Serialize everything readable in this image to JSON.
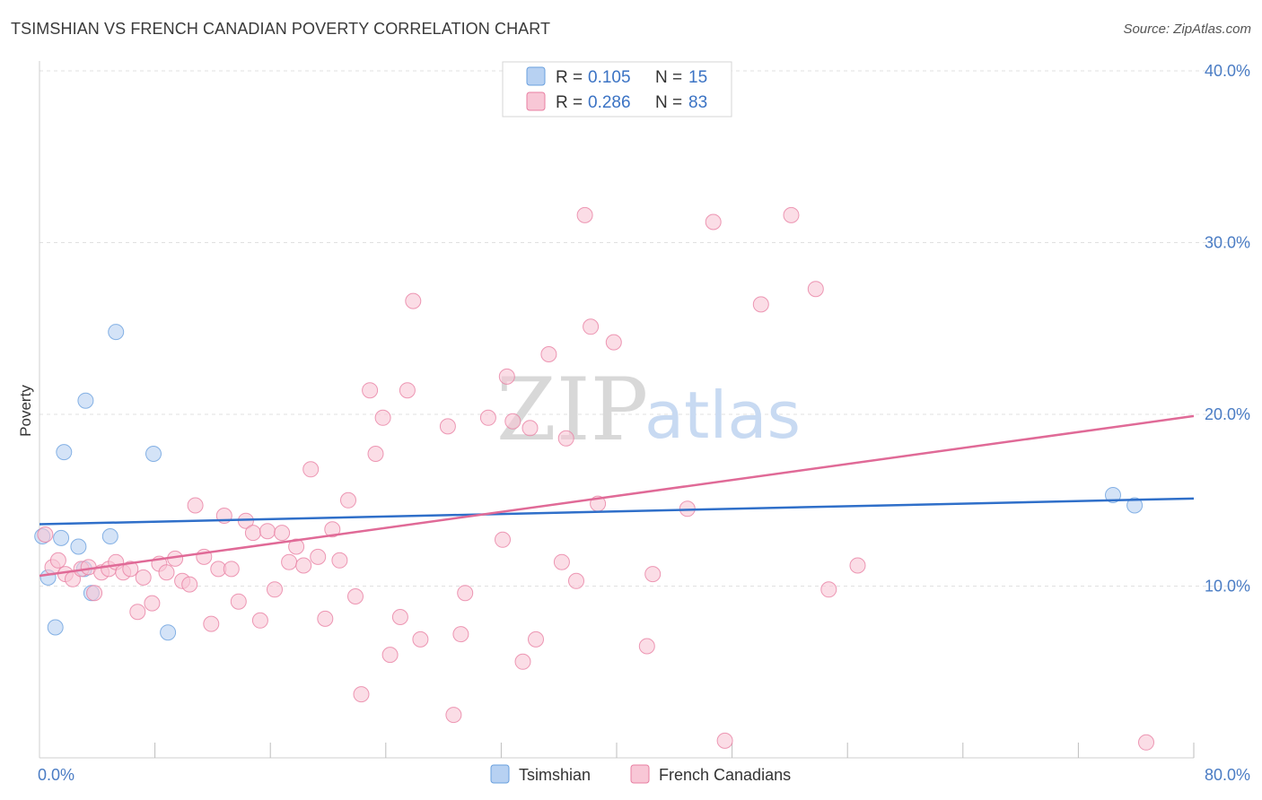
{
  "title": "TSIMSHIAN VS FRENCH CANADIAN POVERTY CORRELATION CHART",
  "source": "Source: ZipAtlas.com",
  "watermark": {
    "zip": "ZIP",
    "atlas": "atlas"
  },
  "chart_data": {
    "type": "scatter",
    "ylabel": "Poverty",
    "xlim": [
      0,
      80
    ],
    "ylim": [
      0,
      40
    ],
    "x_tick_labels": [
      {
        "value": 0,
        "label": "0.0%"
      },
      {
        "value": 80,
        "label": "80.0%"
      }
    ],
    "y_tick_labels": [
      {
        "value": 10,
        "label": "10.0%"
      },
      {
        "value": 20,
        "label": "20.0%"
      },
      {
        "value": 30,
        "label": "30.0%"
      },
      {
        "value": 40,
        "label": "40.0%"
      }
    ],
    "legend_stats": [
      {
        "r_label": "R =",
        "r": "0.105",
        "n_label": "N =",
        "n": "15"
      },
      {
        "r_label": "R =",
        "r": "0.286",
        "n_label": "N =",
        "n": "83"
      }
    ],
    "series": [
      {
        "name": "Tsimshian",
        "color": "#6aa0de",
        "fill": "#b7d1f2",
        "trend": {
          "x": [
            0,
            80
          ],
          "y": [
            13.6,
            15.1
          ]
        },
        "points": [
          [
            0.2,
            12.9
          ],
          [
            0.6,
            10.5
          ],
          [
            1.1,
            7.6
          ],
          [
            1.5,
            12.8
          ],
          [
            1.7,
            17.8
          ],
          [
            2.7,
            12.3
          ],
          [
            3.1,
            11.0
          ],
          [
            3.2,
            20.8
          ],
          [
            3.6,
            9.6
          ],
          [
            4.9,
            12.9
          ],
          [
            5.3,
            24.8
          ],
          [
            7.9,
            17.7
          ],
          [
            8.9,
            7.3
          ],
          [
            74.4,
            15.3
          ],
          [
            75.9,
            14.7
          ]
        ]
      },
      {
        "name": "French Canadians",
        "color": "#e87fa2",
        "fill": "#f8c7d6",
        "trend": {
          "x": [
            0,
            80
          ],
          "y": [
            10.6,
            19.9
          ]
        },
        "points": [
          [
            0.4,
            13.0
          ],
          [
            0.9,
            11.1
          ],
          [
            1.3,
            11.5
          ],
          [
            1.8,
            10.7
          ],
          [
            2.3,
            10.4
          ],
          [
            2.9,
            11.0
          ],
          [
            3.4,
            11.1
          ],
          [
            3.8,
            9.6
          ],
          [
            4.3,
            10.8
          ],
          [
            4.8,
            11.0
          ],
          [
            5.3,
            11.4
          ],
          [
            5.8,
            10.8
          ],
          [
            6.3,
            11.0
          ],
          [
            6.8,
            8.5
          ],
          [
            7.2,
            10.5
          ],
          [
            7.8,
            9.0
          ],
          [
            8.3,
            11.3
          ],
          [
            8.8,
            10.8
          ],
          [
            9.4,
            11.6
          ],
          [
            9.9,
            10.3
          ],
          [
            10.4,
            10.1
          ],
          [
            10.8,
            14.7
          ],
          [
            11.4,
            11.7
          ],
          [
            11.9,
            7.8
          ],
          [
            12.4,
            11.0
          ],
          [
            12.8,
            14.1
          ],
          [
            13.3,
            11.0
          ],
          [
            13.8,
            9.1
          ],
          [
            14.3,
            13.8
          ],
          [
            14.8,
            13.1
          ],
          [
            15.3,
            8.0
          ],
          [
            15.8,
            13.2
          ],
          [
            16.3,
            9.8
          ],
          [
            16.8,
            13.1
          ],
          [
            17.3,
            11.4
          ],
          [
            17.8,
            12.3
          ],
          [
            18.3,
            11.2
          ],
          [
            18.8,
            16.8
          ],
          [
            19.3,
            11.7
          ],
          [
            19.8,
            8.1
          ],
          [
            20.3,
            13.3
          ],
          [
            20.8,
            11.5
          ],
          [
            21.4,
            15.0
          ],
          [
            21.9,
            9.4
          ],
          [
            22.3,
            3.7
          ],
          [
            22.9,
            21.4
          ],
          [
            23.3,
            17.7
          ],
          [
            23.8,
            19.8
          ],
          [
            24.3,
            6.0
          ],
          [
            25.0,
            8.2
          ],
          [
            25.5,
            21.4
          ],
          [
            25.9,
            26.6
          ],
          [
            26.4,
            6.9
          ],
          [
            28.3,
            19.3
          ],
          [
            28.7,
            2.5
          ],
          [
            29.2,
            7.2
          ],
          [
            29.5,
            9.6
          ],
          [
            31.1,
            19.8
          ],
          [
            32.1,
            12.7
          ],
          [
            32.4,
            22.2
          ],
          [
            32.8,
            19.6
          ],
          [
            33.5,
            5.6
          ],
          [
            34.0,
            19.2
          ],
          [
            34.4,
            6.9
          ],
          [
            35.3,
            23.5
          ],
          [
            36.2,
            11.4
          ],
          [
            36.5,
            18.6
          ],
          [
            37.2,
            10.3
          ],
          [
            37.8,
            31.6
          ],
          [
            38.2,
            25.1
          ],
          [
            38.7,
            14.8
          ],
          [
            39.8,
            24.2
          ],
          [
            42.1,
            6.5
          ],
          [
            42.5,
            10.7
          ],
          [
            44.9,
            14.5
          ],
          [
            46.7,
            31.2
          ],
          [
            47.5,
            1.0
          ],
          [
            50.0,
            26.4
          ],
          [
            52.1,
            31.6
          ],
          [
            53.8,
            27.3
          ],
          [
            54.7,
            9.8
          ],
          [
            56.7,
            11.2
          ],
          [
            76.7,
            0.9
          ]
        ]
      }
    ]
  }
}
